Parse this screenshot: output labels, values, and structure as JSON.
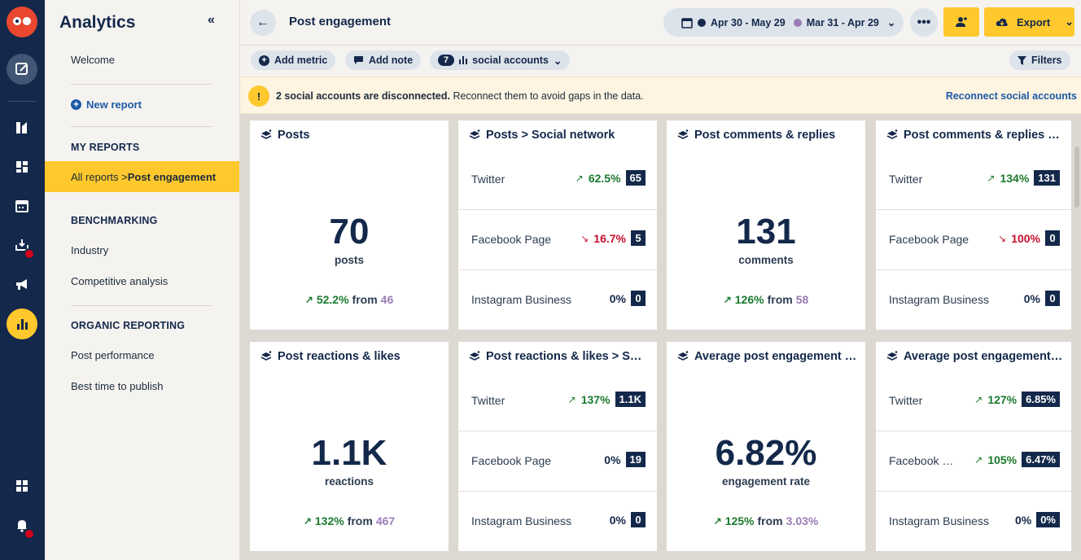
{
  "sidebar": {
    "title": "Analytics",
    "collapse_glyph": "«",
    "welcome": "Welcome",
    "new_report": "New report",
    "my_reports_heading": "MY REPORTS",
    "active_item_prefix": "All reports > ",
    "active_item_bold": "Post engagement",
    "benchmarking_heading": "BENCHMARKING",
    "industry": "Industry",
    "competitive": "Competitive analysis",
    "organic_heading": "ORGANIC REPORTING",
    "post_performance": "Post performance",
    "best_time": "Best time to publish"
  },
  "header": {
    "title": "Post engagement",
    "date_current": "Apr 30 - May 29",
    "date_compare": "Mar 31 - Apr 29",
    "more": "•••",
    "export": "Export"
  },
  "toolbar": {
    "add_metric": "Add metric",
    "add_note": "Add note",
    "accounts_count": "7",
    "accounts_label": "social accounts",
    "filters": "Filters"
  },
  "alert": {
    "bold": "2 social accounts are disconnected.",
    "text": " Reconnect them to avoid gaps in the data.",
    "link": "Reconnect social accounts"
  },
  "colors": {
    "accent": "#ffc82c",
    "navy": "#13284a",
    "positive": "#1b7a2e",
    "negative": "#c8102e",
    "compare": "#9a7cb6"
  },
  "cards": {
    "posts": {
      "title": "Posts",
      "value": "70",
      "unit": "posts",
      "pct": "52.2%",
      "from_label": "from",
      "from": "46"
    },
    "posts_network": {
      "title": "Posts > Social network",
      "rows": [
        {
          "label": "Twitter",
          "pct": "62.5%",
          "dir": "up",
          "value": "65"
        },
        {
          "label": "Facebook Page",
          "pct": "16.7%",
          "dir": "down",
          "value": "5"
        },
        {
          "label": "Instagram Business",
          "pct": "0%",
          "dir": "zero",
          "value": "0"
        }
      ]
    },
    "comments": {
      "title": "Post comments & replies",
      "value": "131",
      "unit": "comments",
      "pct": "126%",
      "from_label": "from",
      "from": "58"
    },
    "comments_network": {
      "title": "Post comments & replies > Social network",
      "rows": [
        {
          "label": "Twitter",
          "pct": "134%",
          "dir": "up",
          "value": "131"
        },
        {
          "label": "Facebook Page",
          "pct": "100%",
          "dir": "down",
          "value": "0"
        },
        {
          "label": "Instagram Business",
          "pct": "0%",
          "dir": "zero",
          "value": "0"
        }
      ]
    },
    "reactions": {
      "title": "Post reactions & likes",
      "value": "1.1K",
      "unit": "reactions",
      "pct": "132%",
      "from_label": "from",
      "from": "467"
    },
    "reactions_network": {
      "title": "Post reactions & likes > Social network",
      "rows": [
        {
          "label": "Twitter",
          "pct": "137%",
          "dir": "up",
          "value": "1.1K"
        },
        {
          "label": "Facebook Page",
          "pct": "0%",
          "dir": "zero",
          "value": "19"
        },
        {
          "label": "Instagram Business",
          "pct": "0%",
          "dir": "zero",
          "value": "0"
        }
      ]
    },
    "engagement": {
      "title": "Average post engagement rate",
      "value": "6.82%",
      "unit": "engagement rate",
      "pct": "125%",
      "from_label": "from",
      "from": "3.03%"
    },
    "engagement_network": {
      "title": "Average post engagement rate > Social network",
      "rows": [
        {
          "label": "Twitter",
          "pct": "127%",
          "dir": "up",
          "value": "6.85%"
        },
        {
          "label": "Facebook Page",
          "pct": "105%",
          "dir": "up",
          "value": "6.47%"
        },
        {
          "label": "Instagram Business",
          "pct": "0%",
          "dir": "zero",
          "value": "0%"
        }
      ]
    }
  }
}
